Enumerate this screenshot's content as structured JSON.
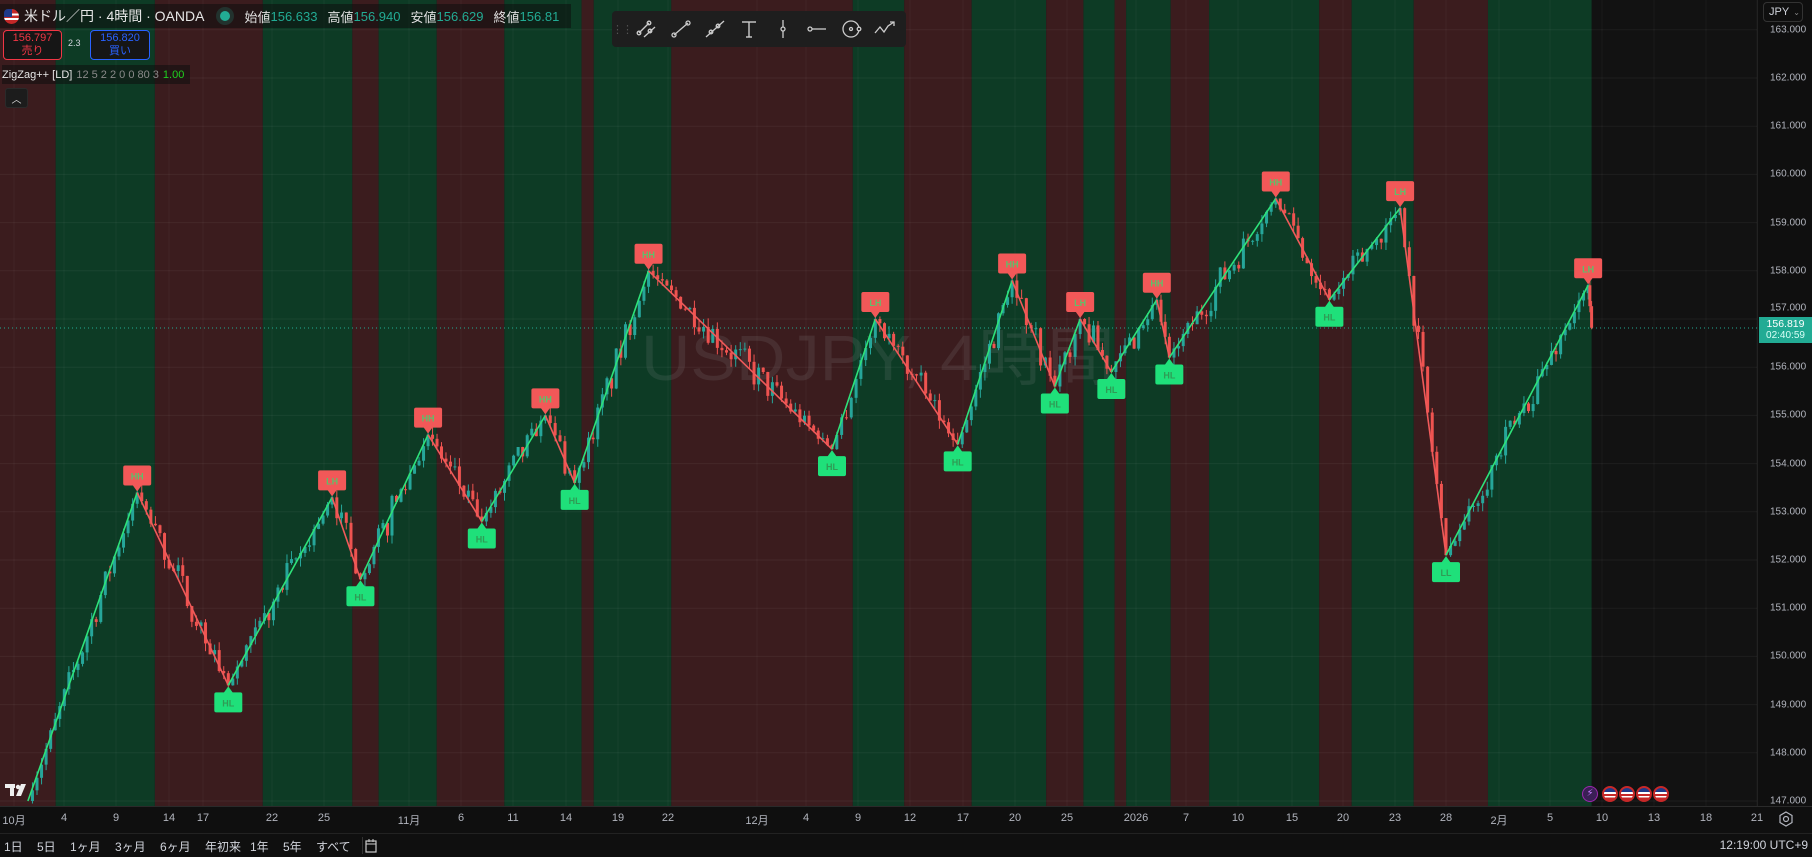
{
  "header": {
    "symbol_title": "米ドル／円 · 4時間 · OANDA",
    "ohlc": [
      {
        "key": "始値",
        "value": "156.633"
      },
      {
        "key": "高値",
        "value": "156.940"
      },
      {
        "key": "安値",
        "value": "156.629"
      },
      {
        "key": "終値",
        "value": "156.81"
      }
    ],
    "sell": {
      "price": "156.797",
      "label": "売り"
    },
    "buy": {
      "price": "156.820",
      "label": "買い"
    },
    "spread": "2.3",
    "indicator": {
      "name": "ZigZag++ [LD]",
      "params": "12 5 2 2 0 0 80 3",
      "value": "1.00"
    },
    "collapse_icon": "chevron-up"
  },
  "drawing_toolbar": [
    "trend-line-parallel-icon",
    "trend-line-icon",
    "parallel-channel-icon",
    "text-icon",
    "vertical-line-icon",
    "horizontal-ray-icon",
    "circle-icon",
    "path-arrow-icon"
  ],
  "currency_selector": "JPY",
  "watermark": "USDJPY, 4時間",
  "current_price": {
    "value": "156.819",
    "countdown": "02:40:59",
    "color": "#22ab94"
  },
  "bottom_bar": {
    "ranges": [
      "1日",
      "5日",
      "1ヶ月",
      "3ヶ月",
      "6ヶ月",
      "年初来",
      "1年",
      "5年",
      "すべて"
    ],
    "clock": "12:19:00 UTC+9"
  },
  "colors": {
    "up_band": "#0d3b25",
    "down_band": "#3b1c1e",
    "up_leg": "#2ee27a",
    "down_leg": "#f05a5a",
    "high_label": "#f25858",
    "low_label": "#1fe07a",
    "candle_up": "#26a69a",
    "candle_down": "#ef5350"
  },
  "chart_data": {
    "type": "candlestick",
    "symbol": "USDJPY",
    "timeframe": "4時間",
    "ylim": [
      147,
      163
    ],
    "y_ticks": [
      "147.000",
      "148.000",
      "149.000",
      "150.000",
      "151.000",
      "152.000",
      "153.000",
      "154.000",
      "155.000",
      "156.000",
      "157.000",
      "158.000",
      "159.000",
      "160.000",
      "161.000",
      "162.000",
      "163.000"
    ],
    "x_ticks": [
      {
        "label": "10月",
        "date": "2025-10-01T00:00"
      },
      {
        "label": "4",
        "date": "2025-10-04T00:00"
      },
      {
        "label": "9",
        "date": "2025-10-09T00:00"
      },
      {
        "label": "14",
        "date": "2025-10-14T00:00"
      },
      {
        "label": "17",
        "date": "2025-10-17T00:00"
      },
      {
        "label": "22",
        "date": "2025-10-22T00:00"
      },
      {
        "label": "25",
        "date": "2025-10-25T00:00"
      },
      {
        "label": "11月",
        "date": "2025-11-01T00:00"
      },
      {
        "label": "6",
        "date": "2025-11-06T00:00"
      },
      {
        "label": "11",
        "date": "2025-11-11T00:00"
      },
      {
        "label": "14",
        "date": "2025-11-14T00:00"
      },
      {
        "label": "19",
        "date": "2025-11-19T00:00"
      },
      {
        "label": "22",
        "date": "2025-11-22T00:00"
      },
      {
        "label": "12月",
        "date": "2025-12-01T00:00"
      },
      {
        "label": "4",
        "date": "2025-12-04T00:00"
      },
      {
        "label": "9",
        "date": "2025-12-09T00:00"
      },
      {
        "label": "12",
        "date": "2025-12-12T00:00"
      },
      {
        "label": "17",
        "date": "2025-12-17T00:00"
      },
      {
        "label": "20",
        "date": "2025-12-20T00:00"
      },
      {
        "label": "25",
        "date": "2025-12-25T00:00"
      },
      {
        "label": "2026",
        "date": "2026-01-01T00:00"
      },
      {
        "label": "7",
        "date": "2026-01-07T00:00"
      },
      {
        "label": "10",
        "date": "2026-01-10T00:00"
      },
      {
        "label": "15",
        "date": "2026-01-15T00:00"
      },
      {
        "label": "20",
        "date": "2026-01-20T00:00"
      },
      {
        "label": "23",
        "date": "2026-01-23T00:00"
      },
      {
        "label": "28",
        "date": "2026-01-28T00:00"
      },
      {
        "label": "2月",
        "date": "2026-02-01T00:00"
      },
      {
        "label": "5",
        "date": "2026-02-05T00:00"
      },
      {
        "label": "10",
        "date": "2026-02-10T00:00"
      },
      {
        "label": "13",
        "date": "2026-02-13T00:00"
      },
      {
        "label": "18",
        "date": "2026-02-18T00:00"
      },
      {
        "label": "21",
        "date": "2026-02-21T00:00"
      }
    ],
    "zigzag_start": {
      "date": "2025-10-01T20:00",
      "price": 147.0
    },
    "pivots": [
      {
        "date": "2025-10-11T00:00",
        "price": 153.4,
        "type": "high",
        "label": "HH"
      },
      {
        "date": "2025-10-18T20:00",
        "price": 149.4,
        "type": "low",
        "label": "HL"
      },
      {
        "date": "2025-10-25T16:00",
        "price": 153.3,
        "type": "high",
        "label": "LH"
      },
      {
        "date": "2025-10-28T00:00",
        "price": 151.6,
        "type": "low",
        "label": "HL"
      },
      {
        "date": "2025-11-02T20:00",
        "price": 154.6,
        "type": "high",
        "label": "HH"
      },
      {
        "date": "2025-11-08T00:00",
        "price": 152.8,
        "type": "low",
        "label": "HL"
      },
      {
        "date": "2025-11-12T20:00",
        "price": 155.0,
        "type": "high",
        "label": "HH"
      },
      {
        "date": "2025-11-14T20:00",
        "price": 153.6,
        "type": "low",
        "label": "HL"
      },
      {
        "date": "2025-11-20T20:00",
        "price": 158.0,
        "type": "high",
        "label": "HH"
      },
      {
        "date": "2025-12-06T12:00",
        "price": 154.3,
        "type": "low",
        "label": "HL"
      },
      {
        "date": "2025-12-10T00:00",
        "price": 157.0,
        "type": "high",
        "label": "LH"
      },
      {
        "date": "2025-12-16T12:00",
        "price": 154.4,
        "type": "low",
        "label": "HL"
      },
      {
        "date": "2025-12-19T20:00",
        "price": 157.8,
        "type": "high",
        "label": "HH"
      },
      {
        "date": "2025-12-23T20:00",
        "price": 155.6,
        "type": "low",
        "label": "HL"
      },
      {
        "date": "2025-12-26T08:00",
        "price": 157.0,
        "type": "high",
        "label": "LH"
      },
      {
        "date": "2025-12-29T12:00",
        "price": 155.9,
        "type": "low",
        "label": "HL"
      },
      {
        "date": "2026-01-03T12:00",
        "price": 157.4,
        "type": "high",
        "label": "HH"
      },
      {
        "date": "2026-01-05T00:00",
        "price": 156.2,
        "type": "low",
        "label": "HL"
      },
      {
        "date": "2026-01-13T12:00",
        "price": 159.5,
        "type": "high",
        "label": "HH"
      },
      {
        "date": "2026-01-18T16:00",
        "price": 157.4,
        "type": "low",
        "label": "HL"
      },
      {
        "date": "2026-01-23T12:00",
        "price": 159.3,
        "type": "high",
        "label": "LH"
      },
      {
        "date": "2026-01-28T00:00",
        "price": 152.1,
        "type": "low",
        "label": "LL"
      },
      {
        "date": "2026-02-08T16:00",
        "price": 157.7,
        "type": "high",
        "label": "LH"
      }
    ],
    "last": {
      "date": "2026-02-09T00:00",
      "price": 156.819
    },
    "trend_bands": [
      {
        "from": "2025-10-01T00:00",
        "trend": "down"
      },
      {
        "from": "2025-10-03T12:00",
        "trend": "up"
      },
      {
        "from": "2025-10-12T16:00",
        "trend": "down"
      },
      {
        "from": "2025-10-21T08:00",
        "trend": "up"
      },
      {
        "from": "2025-10-27T08:00",
        "trend": "down"
      },
      {
        "from": "2025-10-29T12:00",
        "trend": "up"
      },
      {
        "from": "2025-11-03T16:00",
        "trend": "down"
      },
      {
        "from": "2025-11-10T04:00",
        "trend": "up"
      },
      {
        "from": "2025-11-15T12:00",
        "trend": "down"
      },
      {
        "from": "2025-11-16T16:00",
        "trend": "up"
      },
      {
        "from": "2025-11-22T08:00",
        "trend": "down"
      },
      {
        "from": "2025-12-08T12:00",
        "trend": "up"
      },
      {
        "from": "2025-12-11T16:00",
        "trend": "down"
      },
      {
        "from": "2025-12-17T12:00",
        "trend": "up"
      },
      {
        "from": "2025-12-23T00:00",
        "trend": "down"
      },
      {
        "from": "2025-12-26T16:00",
        "trend": "up"
      },
      {
        "from": "2025-12-29T20:00",
        "trend": "down"
      },
      {
        "from": "2025-12-31T00:00",
        "trend": "up"
      },
      {
        "from": "2026-01-05T04:00",
        "trend": "down"
      },
      {
        "from": "2026-01-08T08:00",
        "trend": "up"
      },
      {
        "from": "2026-01-17T16:00",
        "trend": "down"
      },
      {
        "from": "2026-01-20T12:00",
        "trend": "up"
      },
      {
        "from": "2026-01-24T20:00",
        "trend": "down"
      },
      {
        "from": "2026-01-31T04:00",
        "trend": "up"
      }
    ]
  }
}
